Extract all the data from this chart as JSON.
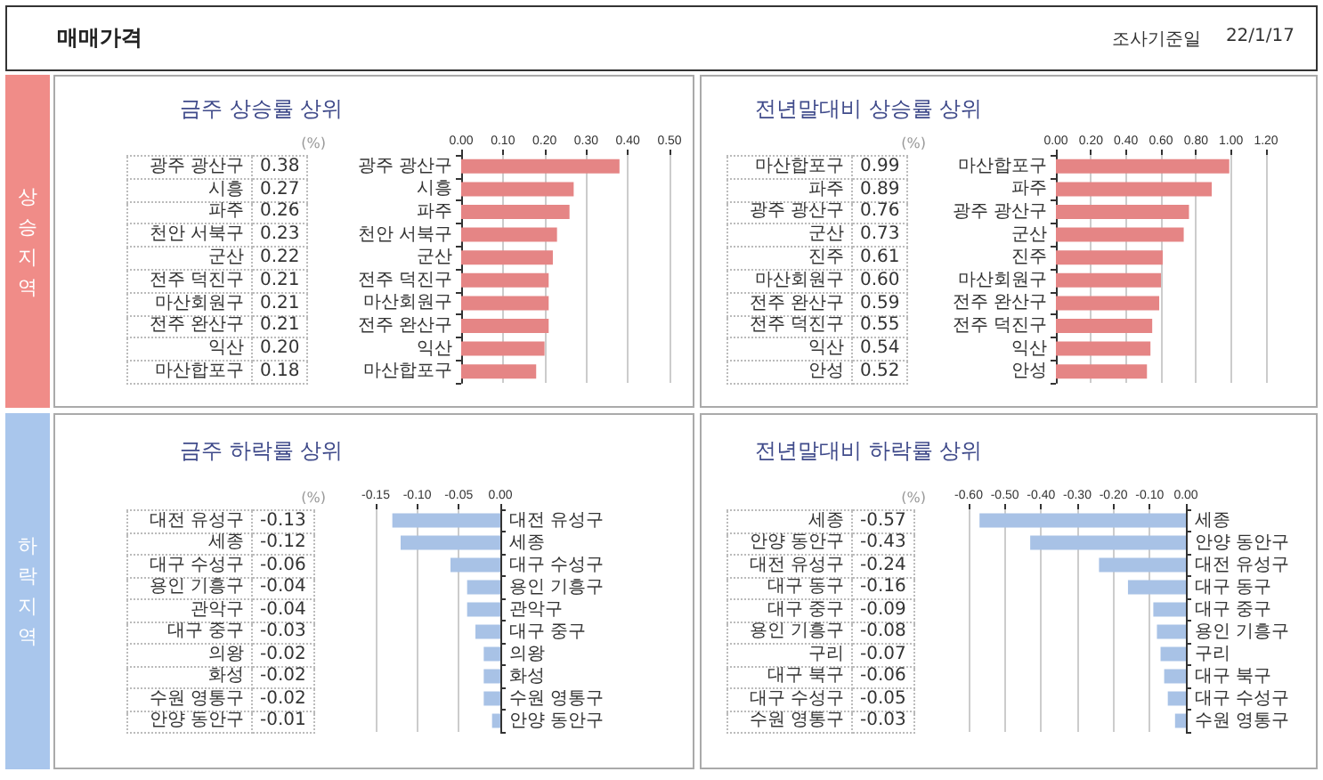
{
  "chart_data": [
    {
      "type": "other",
      "title": "매매가격",
      "annotations": [
        "조사기준일",
        "22/1/17"
      ]
    },
    {
      "type": "other",
      "title": "상승지역",
      "color": "#f08c88"
    },
    {
      "type": "bar",
      "orientation": "horizontal",
      "title": "금주 상승률 상위",
      "annotations": [
        "(%)"
      ],
      "grid": "x",
      "color": "#e58585",
      "categories": [
        "광주 광산구",
        "시흥",
        "파주",
        "천안 서북구",
        "군산",
        "전주 덕진구",
        "마산회원구",
        "전주 완산구",
        "익산",
        "마산합포구"
      ],
      "values": [
        0.38,
        0.27,
        0.26,
        0.23,
        0.22,
        0.21,
        0.21,
        0.21,
        0.2,
        0.18
      ],
      "value_labels": [
        "0.38",
        "0.27",
        "0.26",
        "0.23",
        "0.22",
        "0.21",
        "0.21",
        "0.21",
        "0.20",
        "0.18"
      ],
      "xlim": [
        0,
        0.5
      ],
      "xticks": [
        {
          "value": 0,
          "label": "0.00"
        },
        {
          "value": 0.1,
          "label": "0.10"
        },
        {
          "value": 0.2,
          "label": "0.20"
        },
        {
          "value": 0.3,
          "label": "0.30"
        },
        {
          "value": 0.4,
          "label": "0.40"
        },
        {
          "value": 0.5,
          "label": "0.50"
        }
      ]
    },
    {
      "type": "bar",
      "orientation": "horizontal",
      "title": "전년말대비 상승률 상위",
      "annotations": [
        "(%)"
      ],
      "grid": "x",
      "color": "#e58585",
      "categories": [
        "마산합포구",
        "파주",
        "광주 광산구",
        "군산",
        "진주",
        "마산회원구",
        "전주 완산구",
        "전주 덕진구",
        "익산",
        "안성"
      ],
      "values": [
        0.99,
        0.89,
        0.76,
        0.73,
        0.61,
        0.6,
        0.59,
        0.55,
        0.54,
        0.52
      ],
      "value_labels": [
        "0.99",
        "0.89",
        "0.76",
        "0.73",
        "0.61",
        "0.60",
        "0.59",
        "0.55",
        "0.54",
        "0.52"
      ],
      "xlim": [
        0,
        1.2
      ],
      "xticks": [
        {
          "value": 0,
          "label": "0.00"
        },
        {
          "value": 0.2,
          "label": "0.20"
        },
        {
          "value": 0.4,
          "label": "0.40"
        },
        {
          "value": 0.6,
          "label": "0.60"
        },
        {
          "value": 0.8,
          "label": "0.80"
        },
        {
          "value": 1,
          "label": "1.00"
        },
        {
          "value": 1.2,
          "label": "1.20"
        }
      ]
    },
    {
      "type": "other",
      "title": "하락지역",
      "color": "#a9c6ec"
    },
    {
      "type": "bar",
      "orientation": "horizontal",
      "title": "금주 하락률 상위",
      "annotations": [
        "(%)"
      ],
      "grid": "x",
      "color": "#a8c2e6",
      "categories": [
        "대전 유성구",
        "세종",
        "대구 수성구",
        "용인 기흥구",
        "관악구",
        "대구 중구",
        "의왕",
        "화성",
        "수원 영통구",
        "안양 동안구"
      ],
      "values": [
        -0.13,
        -0.12,
        -0.06,
        -0.04,
        -0.04,
        -0.03,
        -0.02,
        -0.02,
        -0.02,
        -0.01
      ],
      "value_labels": [
        "-0.13",
        "-0.12",
        "-0.06",
        "-0.04",
        "-0.04",
        "-0.03",
        "-0.02",
        "-0.02",
        "-0.02",
        "-0.01"
      ],
      "xlim": [
        -0.15,
        0
      ],
      "xticks": [
        {
          "value": -0.15,
          "label": "-0.15"
        },
        {
          "value": -0.1,
          "label": "-0.10"
        },
        {
          "value": -0.05,
          "label": "-0.05"
        },
        {
          "value": 0,
          "label": "0.00"
        }
      ]
    },
    {
      "type": "bar",
      "orientation": "horizontal",
      "title": "전년말대비 하락률 상위",
      "annotations": [
        "(%)"
      ],
      "grid": "x",
      "color": "#a8c2e6",
      "categories": [
        "세종",
        "안양 동안구",
        "대전 유성구",
        "대구 동구",
        "대구 중구",
        "용인 기흥구",
        "구리",
        "대구 북구",
        "대구 수성구",
        "수원 영통구"
      ],
      "values": [
        -0.57,
        -0.43,
        -0.24,
        -0.16,
        -0.09,
        -0.08,
        -0.07,
        -0.06,
        -0.05,
        -0.03
      ],
      "value_labels": [
        "-0.57",
        "-0.43",
        "-0.24",
        "-0.16",
        "-0.09",
        "-0.08",
        "-0.07",
        "-0.06",
        "-0.05",
        "-0.03"
      ],
      "xlim": [
        -0.6,
        0
      ],
      "xticks": [
        {
          "value": -0.6,
          "label": "-0.60"
        },
        {
          "value": -0.5,
          "label": "-0.50"
        },
        {
          "value": -0.4,
          "label": "-0.40"
        },
        {
          "value": -0.3,
          "label": "-0.30"
        },
        {
          "value": -0.2,
          "label": "-0.20"
        },
        {
          "value": -0.1,
          "label": "-0.10"
        },
        {
          "value": 0,
          "label": "0.00"
        }
      ]
    }
  ]
}
